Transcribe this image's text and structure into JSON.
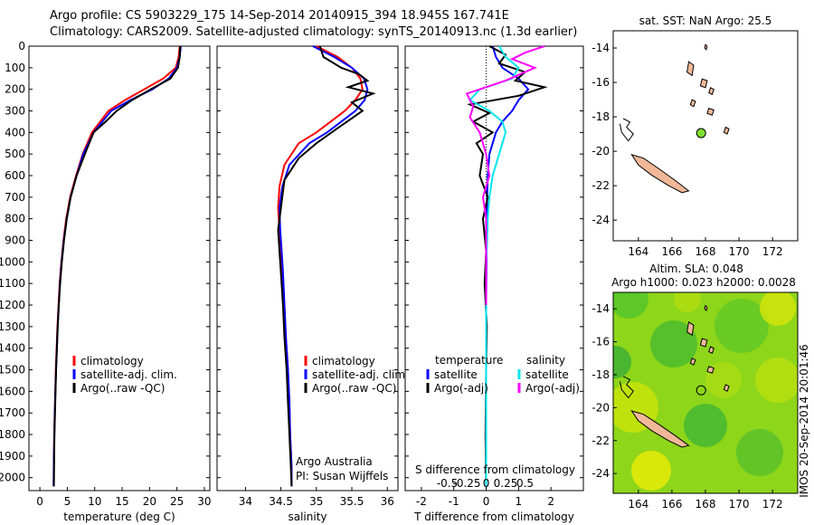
{
  "header": {
    "line1": "Argo profile: CS 5903229_175 14-Sep-2014 20140915_394 18.945S 167.741E",
    "line2": "Climatology: CARS2009. Satellite-adjusted climatology: synTS_20140913.nc (1.3d earlier)"
  },
  "colors": {
    "climatology": "#ff0000",
    "satellite": "#0000ff",
    "argo": "#000000",
    "sat_salinity": "#00e5ee",
    "argo_salinity": "#ff00ff",
    "land": "#f0b898"
  },
  "depth_axis": {
    "ylim": [
      0,
      2060
    ],
    "ticks": [
      0,
      100,
      200,
      300,
      400,
      500,
      600,
      700,
      800,
      900,
      1000,
      1100,
      1200,
      1300,
      1400,
      1500,
      1600,
      1700,
      1800,
      1900,
      2000
    ]
  },
  "temperature_panel": {
    "xlabel": "temperature (deg C)",
    "xlim": [
      -2,
      31
    ],
    "xticks": [
      0,
      5,
      10,
      15,
      20,
      25,
      30
    ],
    "legend": [
      "climatology",
      "satellite-adj. clim.",
      "Argo(..raw -QC)"
    ]
  },
  "salinity_panel": {
    "xlabel": "salinity",
    "xlim": [
      33.6,
      36.15
    ],
    "xticks": [
      "34",
      "34.5",
      "35",
      "35.5",
      "36"
    ],
    "legend": [
      "climatology",
      "satellite-adj. clim.",
      "Argo(..raw -QC)"
    ],
    "credit1": "Argo Australia",
    "credit2": "PI: Susan Wijffels"
  },
  "difference_panel": {
    "xlabel_bottom": "T difference from climatology",
    "xlabel_top": "S difference from climatology",
    "xlim": [
      -2.5,
      3
    ],
    "xticks_bottom": [
      "-2",
      "-1",
      "0",
      "1",
      "2"
    ],
    "xticks_top": [
      "-0.5",
      "-0.25",
      "0",
      "0.25",
      "0.5"
    ],
    "legend_t_title": "temperature",
    "legend_t": [
      "satellite",
      "Argo(-adj)"
    ],
    "legend_s_title": "salinity",
    "legend_s": [
      "satellite",
      "Argo(-adj)"
    ]
  },
  "map_top": {
    "title": "sat. SST: NaN Argo: 25.5",
    "xticks": [
      "164",
      "166",
      "168",
      "170",
      "172"
    ],
    "yticks": [
      "-14",
      "-16",
      "-18",
      "-20",
      "-22",
      "-24"
    ],
    "xlim": [
      162.5,
      173.5
    ],
    "ylim": [
      -25.2,
      -13
    ]
  },
  "map_bottom": {
    "title1": "Altim. SLA: 0.048",
    "title2": "Argo h1000: 0.023 h2000: 0.0028",
    "xticks": [
      "164",
      "166",
      "168",
      "170",
      "172"
    ],
    "yticks": [
      "-14",
      "-16",
      "-18",
      "-20",
      "-22",
      "-24"
    ],
    "xlim": [
      162.5,
      173.5
    ],
    "ylim": [
      -25.2,
      -13
    ]
  },
  "timestamp": "IMOS 20-Sep-2014 20:01:46",
  "argo_position": {
    "lon": 167.741,
    "lat": -18.945
  },
  "chart_data": [
    {
      "type": "line",
      "xlabel": "temperature (deg C)",
      "ylabel": "",
      "xlim": [
        -2,
        31
      ],
      "ylim": [
        2060,
        0
      ],
      "series": [
        {
          "name": "climatology",
          "color": "#ff0000",
          "x": [
            25.5,
            25.3,
            24.8,
            22.5,
            19.0,
            15.5,
            12.5,
            9.5,
            7.8,
            6.6,
            5.5,
            4.8,
            4.3,
            3.9,
            3.6,
            3.4,
            3.2,
            3.05,
            2.9,
            2.8,
            2.7,
            2.6,
            2.55,
            2.5
          ],
          "depth": [
            0,
            50,
            100,
            150,
            200,
            250,
            300,
            400,
            500,
            600,
            700,
            800,
            900,
            1000,
            1100,
            1200,
            1300,
            1400,
            1500,
            1600,
            1700,
            1800,
            1900,
            2040
          ]
        },
        {
          "name": "satellite-adj. clim.",
          "color": "#0000ff",
          "x": [
            25.7,
            25.5,
            25.0,
            23.5,
            20.5,
            16.5,
            13.0,
            9.8,
            7.9,
            6.7,
            5.6,
            4.9,
            4.35,
            3.95,
            3.65,
            3.45,
            3.25,
            3.1,
            2.95,
            2.82,
            2.72,
            2.63,
            2.56,
            2.5
          ],
          "depth": [
            0,
            50,
            100,
            150,
            200,
            250,
            300,
            400,
            500,
            600,
            700,
            800,
            900,
            1000,
            1100,
            1200,
            1300,
            1400,
            1500,
            1600,
            1700,
            1800,
            1900,
            2040
          ]
        },
        {
          "name": "Argo(..raw -QC)",
          "color": "#000000",
          "x": [
            25.6,
            25.5,
            25.2,
            23.8,
            20.2,
            16.8,
            14.0,
            12.0,
            9.8,
            8.2,
            6.7,
            5.6,
            4.9,
            4.4,
            4.0,
            3.7,
            3.45,
            3.25,
            3.1,
            2.95,
            2.85,
            2.75,
            2.65,
            2.6,
            2.55
          ],
          "depth": [
            0,
            50,
            100,
            150,
            200,
            250,
            300,
            350,
            400,
            500,
            600,
            700,
            800,
            900,
            1000,
            1100,
            1200,
            1300,
            1400,
            1500,
            1600,
            1700,
            1800,
            1900,
            2040
          ]
        }
      ]
    },
    {
      "type": "line",
      "xlabel": "salinity",
      "ylabel": "",
      "xlim": [
        33.6,
        36.15
      ],
      "ylim": [
        2060,
        0
      ],
      "series": [
        {
          "name": "climatology",
          "color": "#ff0000",
          "x": [
            35.0,
            35.3,
            35.5,
            35.62,
            35.65,
            35.55,
            35.4,
            35.2,
            35.0,
            34.75,
            34.55,
            34.48,
            34.46,
            34.48,
            34.5,
            34.52,
            34.55,
            34.57,
            34.6,
            34.62,
            34.63,
            34.65,
            34.65
          ],
          "depth": [
            0,
            50,
            100,
            150,
            200,
            250,
            300,
            350,
            400,
            450,
            550,
            650,
            750,
            850,
            950,
            1050,
            1200,
            1350,
            1500,
            1650,
            1800,
            1950,
            2040
          ]
        },
        {
          "name": "satellite-adj. clim.",
          "color": "#0000ff",
          "x": [
            34.95,
            35.25,
            35.5,
            35.67,
            35.72,
            35.68,
            35.55,
            35.35,
            35.15,
            34.9,
            34.62,
            34.52,
            34.48,
            34.49,
            34.51,
            34.53,
            34.55,
            34.57,
            34.6,
            34.62,
            34.63,
            34.65,
            34.65
          ],
          "depth": [
            0,
            50,
            100,
            150,
            200,
            250,
            300,
            350,
            400,
            450,
            550,
            650,
            750,
            850,
            950,
            1050,
            1200,
            1350,
            1500,
            1650,
            1800,
            1950,
            2040
          ]
        },
        {
          "name": "Argo(..raw -QC)",
          "color": "#000000",
          "x": [
            35.05,
            35.1,
            35.35,
            35.6,
            35.72,
            35.45,
            35.8,
            35.5,
            35.65,
            35.3,
            35.0,
            34.75,
            34.55,
            34.5,
            34.46,
            34.48,
            34.5,
            34.53,
            34.55,
            34.58,
            34.6,
            34.62,
            34.64,
            34.65
          ],
          "depth": [
            0,
            50,
            100,
            130,
            160,
            190,
            220,
            260,
            300,
            380,
            450,
            520,
            620,
            750,
            850,
            950,
            1050,
            1200,
            1350,
            1500,
            1650,
            1800,
            1950,
            2040
          ]
        }
      ]
    },
    {
      "type": "line",
      "xlabel": "T difference from climatology",
      "ylabel": "",
      "xlim": [
        -2.5,
        3
      ],
      "ylim": [
        2060,
        0
      ],
      "series": [
        {
          "name": "temperature satellite",
          "color": "#0000ff",
          "x": [
            0.2,
            0.3,
            0.5,
            1.0,
            1.3,
            1.0,
            0.8,
            0.5,
            0.3,
            0.2,
            0.1,
            0.05,
            0.03,
            0.02,
            0.01,
            0.01,
            0.0,
            0.0,
            0.0,
            0.0
          ],
          "depth": [
            0,
            50,
            100,
            150,
            200,
            250,
            300,
            350,
            400,
            450,
            500,
            600,
            700,
            800,
            900,
            1000,
            1200,
            1500,
            1800,
            2040
          ]
        },
        {
          "name": "temperature Argo(-adj)",
          "color": "#000000",
          "x": [
            0.1,
            0.6,
            0.4,
            1.2,
            0.9,
            1.8,
            1.0,
            -0.5,
            0.1,
            -0.4,
            0.2,
            -0.3,
            -0.1,
            -0.2,
            0.05,
            -0.1,
            0.0,
            -0.05,
            0.02,
            0.0,
            -0.02,
            0.0
          ],
          "depth": [
            0,
            40,
            80,
            120,
            160,
            190,
            230,
            270,
            310,
            350,
            400,
            450,
            500,
            600,
            700,
            800,
            950,
            1100,
            1300,
            1500,
            1800,
            2040
          ]
        },
        {
          "name": "salinity satellite",
          "color": "#00e5ee",
          "x": [
            0.4,
            0.6,
            1.0,
            0.8,
            -0.2,
            -0.5,
            0.1,
            0.5,
            0.6,
            0.4,
            0.2,
            0.1,
            0.05,
            0.03,
            0.0,
            0.0,
            0.0,
            0.0
          ],
          "depth": [
            0,
            50,
            100,
            150,
            200,
            250,
            300,
            350,
            400,
            500,
            600,
            700,
            800,
            900,
            1000,
            1200,
            1600,
            2040
          ]
        },
        {
          "name": "salinity Argo(-adj)",
          "color": "#ff00ff",
          "x": [
            1.8,
            1.2,
            0.8,
            1.5,
            0.6,
            -0.6,
            -0.4,
            -0.5,
            -0.2,
            0.0,
            0.1,
            -0.1,
            0.0,
            0.0,
            0.0
          ],
          "depth": [
            0,
            30,
            60,
            100,
            160,
            220,
            280,
            330,
            400,
            500,
            600,
            700,
            800,
            1000,
            1200
          ]
        }
      ]
    }
  ]
}
